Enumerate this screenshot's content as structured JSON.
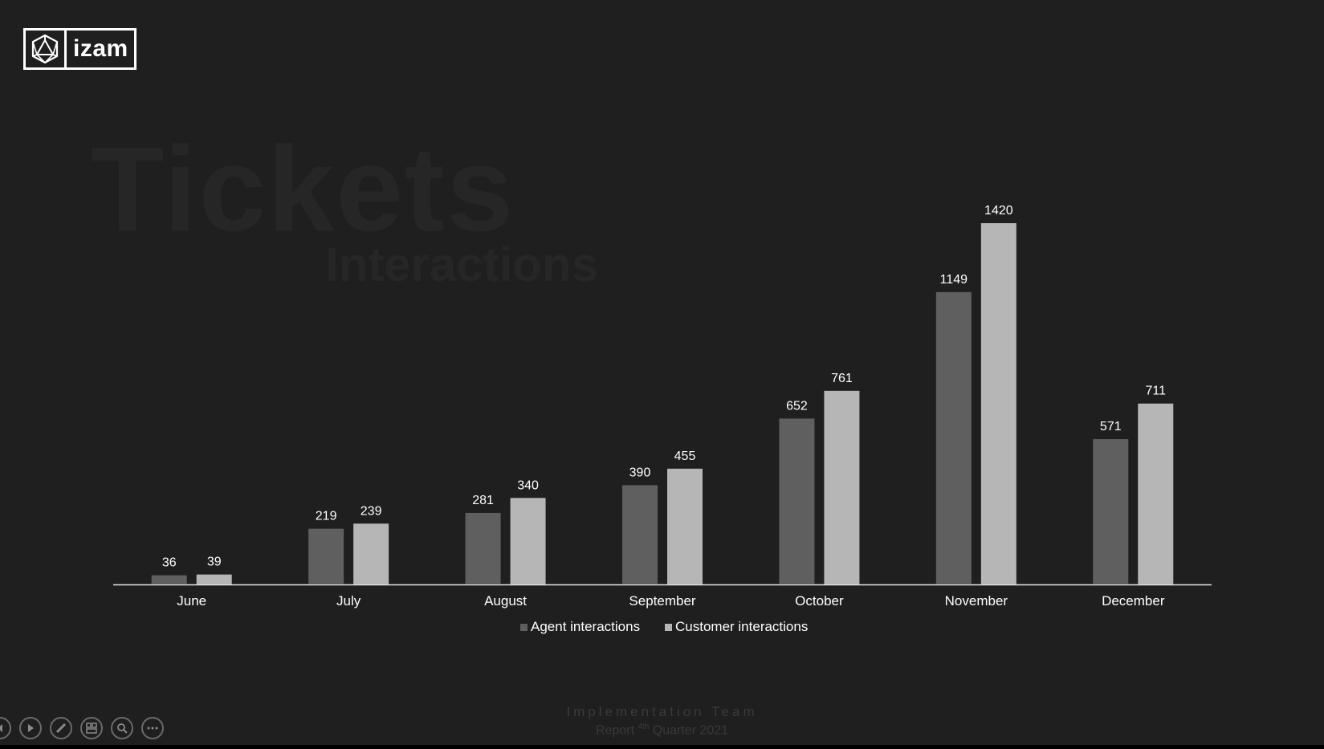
{
  "logo": {
    "text": "izam"
  },
  "watermark": {
    "title": "Tickets",
    "subtitle": "Interactions"
  },
  "footer": {
    "team": "Implementation Team",
    "report_pre": "Report",
    "report_sup": "4th",
    "report_post": "Quarter 2021"
  },
  "controls": [
    "previous-icon",
    "play-icon",
    "pen-icon",
    "slides-icon",
    "zoom-icon",
    "more-icon"
  ],
  "chart_data": {
    "type": "bar",
    "categories": [
      "June",
      "July",
      "August",
      "September",
      "October",
      "November",
      "December"
    ],
    "series": [
      {
        "name": "Agent interactions",
        "values": [
          36,
          219,
          281,
          390,
          652,
          1149,
          571
        ],
        "color": "#5f5f5f"
      },
      {
        "name": "Customer interactions",
        "values": [
          39,
          239,
          340,
          455,
          761,
          1420,
          711
        ],
        "color": "#b6b6b6"
      }
    ],
    "data_labels": true,
    "legend": "bottom",
    "grid": false,
    "ylim": [
      0,
      1420
    ]
  }
}
